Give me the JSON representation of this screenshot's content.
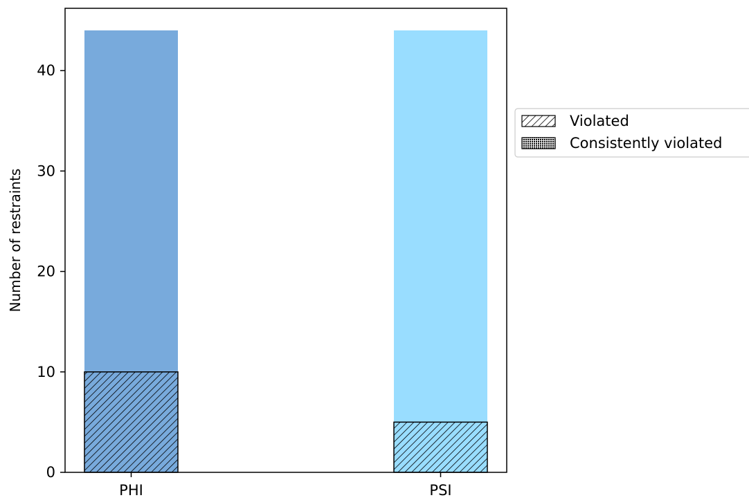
{
  "chart_data": {
    "type": "bar",
    "categories": [
      "PHI",
      "PSI"
    ],
    "series": [
      {
        "values": [
          44,
          44
        ],
        "colors": [
          "#78aadc",
          "#99ddff"
        ]
      },
      {
        "name": "Violated",
        "values": [
          10,
          5
        ],
        "hatch": "diagonal",
        "stacked_on_base": true
      }
    ],
    "legend_entries": [
      "Violated",
      "Consistently violated"
    ],
    "legend_position": "right, outside plot",
    "xlabel": "",
    "ylabel": "Number of restraints",
    "ylim": [
      0,
      46.2
    ],
    "yticks": [
      0,
      10,
      20,
      30,
      40
    ],
    "grid": false
  }
}
